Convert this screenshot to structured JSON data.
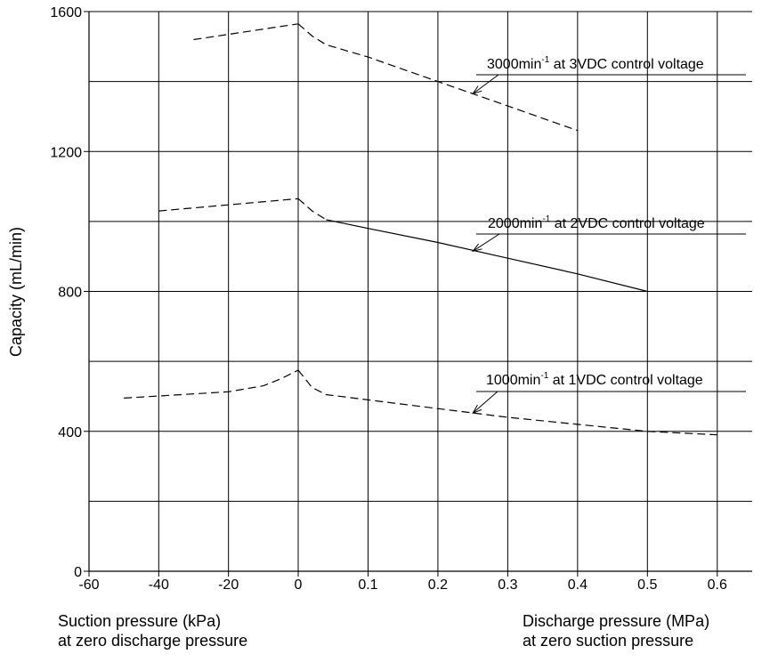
{
  "chart_data": {
    "type": "line",
    "title": "",
    "ylabel": "Capacity (mL/min)",
    "ylim": [
      0,
      1600
    ],
    "y_ticks": [
      "0",
      "400",
      "800",
      "1200",
      "1600"
    ],
    "x_left": {
      "label_line1": "Suction pressure (kPa)",
      "label_line2": "at zero discharge pressure",
      "unit": "kPa",
      "range": [
        -60,
        0
      ],
      "ticks": [
        "-60",
        "-40",
        "-20",
        "0"
      ]
    },
    "x_right": {
      "label_line1": "Discharge pressure (MPa)",
      "label_line2": "at zero suction pressure",
      "unit": "MPa",
      "range": [
        0,
        0.65
      ],
      "ticks": [
        "0.1",
        "0.2",
        "0.3",
        "0.4",
        "0.5",
        "0.6"
      ]
    },
    "grid": true,
    "series": [
      {
        "label_prefix": "3000min",
        "label_sup": "-1",
        "label_suffix": " at 3VDC control voltage",
        "suction_kpa": [
          [
            -30,
            1520
          ],
          [
            0,
            1565
          ]
        ],
        "discharge_mpa": [
          [
            0,
            1565
          ],
          [
            0.02,
            1530
          ],
          [
            0.04,
            1505
          ],
          [
            0.1,
            1470
          ],
          [
            0.2,
            1400
          ],
          [
            0.3,
            1330
          ],
          [
            0.4,
            1260
          ]
        ],
        "dash_style": "dashed"
      },
      {
        "label_prefix": "2000min",
        "label_sup": "-1",
        "label_suffix": " at 2VDC control voltage",
        "suction_kpa": [
          [
            -40,
            1030
          ],
          [
            0,
            1065
          ]
        ],
        "discharge_mpa_dashed": [
          [
            0,
            1065
          ],
          [
            0.02,
            1030
          ],
          [
            0.04,
            1005
          ]
        ],
        "discharge_mpa_solid": [
          [
            0.04,
            1005
          ],
          [
            0.1,
            980
          ],
          [
            0.2,
            940
          ],
          [
            0.3,
            895
          ],
          [
            0.4,
            850
          ],
          [
            0.5,
            800
          ]
        ],
        "dash_style": "mixed"
      },
      {
        "label_prefix": "1000min",
        "label_sup": "-1",
        "label_suffix": " at 1VDC control voltage",
        "suction_kpa": [
          [
            -50,
            495
          ],
          [
            -20,
            513
          ],
          [
            -10,
            530
          ],
          [
            -5,
            550
          ],
          [
            0,
            575
          ]
        ],
        "discharge_mpa": [
          [
            0,
            575
          ],
          [
            0.02,
            525
          ],
          [
            0.04,
            505
          ],
          [
            0.1,
            490
          ],
          [
            0.2,
            465
          ],
          [
            0.3,
            440
          ],
          [
            0.4,
            420
          ],
          [
            0.5,
            400
          ],
          [
            0.6,
            390
          ]
        ],
        "dash_style": "dashed"
      }
    ]
  }
}
